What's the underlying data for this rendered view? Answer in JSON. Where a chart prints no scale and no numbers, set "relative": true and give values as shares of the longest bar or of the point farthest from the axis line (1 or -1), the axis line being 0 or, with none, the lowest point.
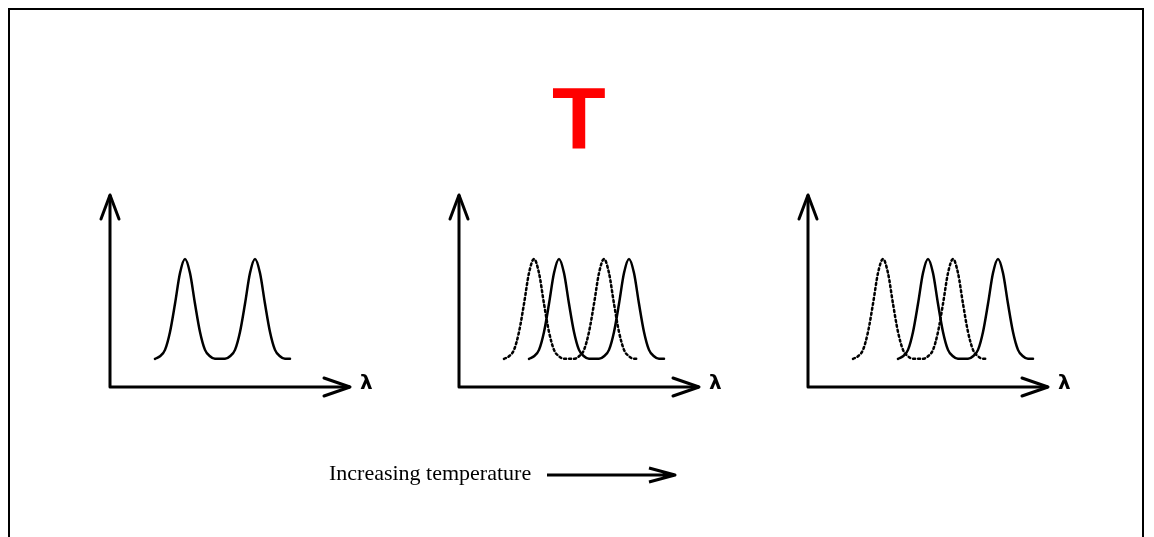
{
  "chart_data": [
    {
      "type": "line",
      "relative": true,
      "xlabel": "λ",
      "tick_labels": false,
      "marker": "none",
      "categories": [
        null,
        null,
        null,
        null,
        null,
        null,
        null,
        null,
        null,
        null,
        null,
        null,
        null,
        null,
        null,
        null,
        null,
        null,
        null,
        null,
        null,
        null,
        null,
        null,
        null,
        null,
        null,
        null,
        null,
        null,
        null,
        null,
        null,
        null,
        null,
        null,
        null,
        null,
        null,
        null,
        null,
        null,
        null,
        null,
        null,
        null,
        null,
        null,
        null
      ],
      "series": [
        {
          "color": "#000000",
          "line_style": "solid",
          "values": [
            null,
            null,
            null,
            null,
            null,
            null,
            null,
            null,
            null,
            0.22,
            0.24,
            0.29,
            0.43,
            0.65,
            0.89,
            1,
            0.89,
            0.65,
            0.43,
            0.29,
            0.24,
            0.22,
            0.22,
            0.22,
            0.24,
            0.29,
            0.43,
            0.65,
            0.89,
            1,
            0.89,
            0.65,
            0.43,
            0.29,
            0.24,
            0.22,
            0.22,
            null,
            null,
            null,
            null,
            null,
            null,
            null,
            null,
            null,
            null,
            null,
            null
          ]
        }
      ]
    },
    {
      "type": "line",
      "relative": true,
      "title": "T",
      "xlabel": "λ",
      "tick_labels": false,
      "marker": "none",
      "annotations": [
        "Increasing temperature"
      ],
      "categories": [
        null,
        null,
        null,
        null,
        null,
        null,
        null,
        null,
        null,
        null,
        null,
        null,
        null,
        null,
        null,
        null,
        null,
        null,
        null,
        null,
        null,
        null,
        null,
        null,
        null,
        null,
        null,
        null,
        null,
        null,
        null,
        null,
        null,
        null,
        null,
        null,
        null,
        null,
        null,
        null,
        null,
        null,
        null,
        null,
        null,
        null,
        null,
        null,
        null
      ],
      "series": [
        {
          "color": "#000000",
          "line_style": "dotted",
          "values": [
            null,
            null,
            null,
            null,
            null,
            null,
            null,
            null,
            null,
            0.22,
            0.24,
            0.29,
            0.43,
            0.65,
            0.89,
            1,
            0.89,
            0.65,
            0.43,
            0.29,
            0.24,
            0.22,
            0.22,
            0.22,
            0.24,
            0.29,
            0.43,
            0.65,
            0.89,
            1,
            0.89,
            0.65,
            0.43,
            0.29,
            0.24,
            0.22,
            0.22,
            null,
            null,
            null,
            null,
            null,
            null,
            null,
            null,
            null,
            null,
            null,
            null
          ]
        },
        {
          "color": "#000000",
          "line_style": "solid",
          "values": [
            null,
            null,
            null,
            null,
            null,
            null,
            null,
            null,
            null,
            null,
            null,
            null,
            null,
            null,
            0.22,
            0.24,
            0.29,
            0.43,
            0.65,
            0.89,
            1,
            0.89,
            0.65,
            0.43,
            0.29,
            0.24,
            0.22,
            0.22,
            0.22,
            0.24,
            0.29,
            0.43,
            0.65,
            0.89,
            1,
            0.89,
            0.65,
            0.43,
            0.29,
            0.24,
            0.22,
            0.22,
            null,
            null,
            null,
            null,
            null,
            null,
            null
          ]
        }
      ]
    },
    {
      "type": "line",
      "relative": true,
      "xlabel": "λ",
      "tick_labels": false,
      "marker": "none",
      "categories": [
        null,
        null,
        null,
        null,
        null,
        null,
        null,
        null,
        null,
        null,
        null,
        null,
        null,
        null,
        null,
        null,
        null,
        null,
        null,
        null,
        null,
        null,
        null,
        null,
        null,
        null,
        null,
        null,
        null,
        null,
        null,
        null,
        null,
        null,
        null,
        null,
        null,
        null,
        null,
        null,
        null,
        null,
        null,
        null,
        null,
        null,
        null,
        null,
        null
      ],
      "series": [
        {
          "color": "#000000",
          "line_style": "dotted",
          "values": [
            null,
            null,
            null,
            null,
            null,
            null,
            null,
            null,
            null,
            0.22,
            0.24,
            0.29,
            0.43,
            0.65,
            0.89,
            1,
            0.89,
            0.65,
            0.43,
            0.29,
            0.24,
            0.22,
            0.22,
            0.22,
            0.24,
            0.29,
            0.43,
            0.65,
            0.89,
            1,
            0.89,
            0.65,
            0.43,
            0.29,
            0.24,
            0.22,
            0.22,
            null,
            null,
            null,
            null,
            null,
            null,
            null,
            null,
            null,
            null,
            null,
            null
          ]
        },
        {
          "color": "#000000",
          "line_style": "solid",
          "values": [
            null,
            null,
            null,
            null,
            null,
            null,
            null,
            null,
            null,
            null,
            null,
            null,
            null,
            null,
            null,
            null,
            null,
            null,
            0.22,
            0.24,
            0.29,
            0.43,
            0.65,
            0.89,
            1,
            0.89,
            0.65,
            0.43,
            0.29,
            0.24,
            0.22,
            0.22,
            0.22,
            0.24,
            0.29,
            0.43,
            0.65,
            0.89,
            1,
            0.89,
            0.65,
            0.43,
            0.29,
            0.24,
            0.22,
            0.22,
            null,
            null,
            null
          ]
        }
      ]
    }
  ]
}
